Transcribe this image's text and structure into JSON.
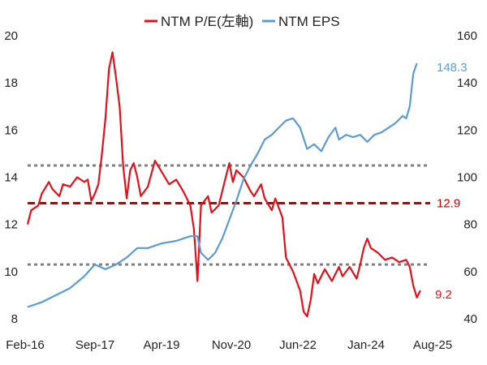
{
  "chart_data": {
    "type": "line",
    "title": "",
    "legend": {
      "placement": "top",
      "entries": [
        "NTM P/E(左軸)",
        "NTM EPS"
      ]
    },
    "colors": {
      "pe": "#e0111b",
      "eps": "#5b9bd5",
      "gray_dash": "#808080",
      "red_dash": "#c00000"
    },
    "x_axis": {
      "tick_labels": [
        "Feb-16",
        "Sep-17",
        "Apr-19",
        "Nov-20",
        "Jun-22",
        "Jan-24",
        "Aug-25"
      ],
      "range": [
        "2016-02",
        "2025-08"
      ]
    },
    "y_left": {
      "range": [
        8,
        20
      ],
      "ticks": [
        8,
        10,
        12,
        14,
        16,
        18,
        20
      ]
    },
    "y_right": {
      "range": [
        40,
        160
      ],
      "ticks": [
        40,
        60,
        80,
        100,
        120,
        140,
        160
      ]
    },
    "grid": false,
    "reference_lines": {
      "pe_mean": 12.9,
      "pe_plus_1sd": 14.5,
      "pe_minus_1sd": 10.3
    },
    "annotations": {
      "pe_mean_label": "12.9",
      "pe_last_label": "9.2",
      "eps_last_label": "148.3"
    },
    "series": [
      {
        "name": "NTM P/E(左軸)",
        "axis": "left",
        "points": [
          [
            "2016-02",
            12.0
          ],
          [
            "2016-03",
            12.6
          ],
          [
            "2016-05",
            12.8
          ],
          [
            "2016-06",
            13.3
          ],
          [
            "2016-08",
            13.8
          ],
          [
            "2016-09",
            13.5
          ],
          [
            "2016-11",
            13.2
          ],
          [
            "2016-12",
            13.7
          ],
          [
            "2017-02",
            13.6
          ],
          [
            "2017-04",
            14.0
          ],
          [
            "2017-06",
            13.8
          ],
          [
            "2017-07",
            13.9
          ],
          [
            "2017-08",
            13.0
          ],
          [
            "2017-09",
            13.3
          ],
          [
            "2017-10",
            13.7
          ],
          [
            "2017-11",
            15.0
          ],
          [
            "2017-12",
            16.5
          ],
          [
            "2018-01",
            18.6
          ],
          [
            "2018-02",
            19.3
          ],
          [
            "2018-03",
            18.2
          ],
          [
            "2018-04",
            17.0
          ],
          [
            "2018-05",
            14.5
          ],
          [
            "2018-06",
            13.1
          ],
          [
            "2018-07",
            14.3
          ],
          [
            "2018-08",
            14.6
          ],
          [
            "2018-09",
            14.0
          ],
          [
            "2018-10",
            13.2
          ],
          [
            "2018-12",
            13.6
          ],
          [
            "2019-02",
            14.7
          ],
          [
            "2019-04",
            14.2
          ],
          [
            "2019-06",
            13.7
          ],
          [
            "2019-08",
            13.9
          ],
          [
            "2019-10",
            13.4
          ],
          [
            "2019-12",
            12.8
          ],
          [
            "2020-01",
            11.8
          ],
          [
            "2020-02",
            9.6
          ],
          [
            "2020-03",
            12.8
          ],
          [
            "2020-05",
            13.2
          ],
          [
            "2020-06",
            12.5
          ],
          [
            "2020-08",
            12.8
          ],
          [
            "2020-09",
            13.4
          ],
          [
            "2020-10",
            14.0
          ],
          [
            "2020-11",
            14.6
          ],
          [
            "2020-12",
            13.8
          ],
          [
            "2021-01",
            14.3
          ],
          [
            "2021-03",
            14.0
          ],
          [
            "2021-05",
            13.4
          ],
          [
            "2021-06",
            13.2
          ],
          [
            "2021-08",
            13.7
          ],
          [
            "2021-09",
            13.1
          ],
          [
            "2021-11",
            12.6
          ],
          [
            "2021-12",
            13.1
          ],
          [
            "2022-02",
            12.3
          ],
          [
            "2022-03",
            10.6
          ],
          [
            "2022-04",
            10.3
          ],
          [
            "2022-05",
            10.0
          ],
          [
            "2022-07",
            9.2
          ],
          [
            "2022-08",
            8.3
          ],
          [
            "2022-09",
            8.1
          ],
          [
            "2022-10",
            8.8
          ],
          [
            "2022-11",
            9.9
          ],
          [
            "2022-12",
            9.5
          ],
          [
            "2023-02",
            10.1
          ],
          [
            "2023-04",
            9.6
          ],
          [
            "2023-06",
            10.2
          ],
          [
            "2023-07",
            9.8
          ],
          [
            "2023-09",
            10.2
          ],
          [
            "2023-11",
            9.7
          ],
          [
            "2023-12",
            10.3
          ],
          [
            "2024-01",
            11.0
          ],
          [
            "2024-02",
            11.4
          ],
          [
            "2024-03",
            11.0
          ],
          [
            "2024-05",
            10.8
          ],
          [
            "2024-07",
            10.5
          ],
          [
            "2024-09",
            10.6
          ],
          [
            "2024-11",
            10.4
          ],
          [
            "2025-01",
            10.5
          ],
          [
            "2025-02",
            10.2
          ],
          [
            "2025-03",
            9.4
          ],
          [
            "2025-04",
            8.9
          ],
          [
            "2025-05",
            9.2
          ]
        ]
      },
      {
        "name": "NTM EPS",
        "axis": "right",
        "points": [
          [
            "2016-02",
            45
          ],
          [
            "2016-06",
            47
          ],
          [
            "2016-10",
            50
          ],
          [
            "2017-02",
            53
          ],
          [
            "2017-06",
            58
          ],
          [
            "2017-09",
            63
          ],
          [
            "2017-12",
            61
          ],
          [
            "2018-03",
            63
          ],
          [
            "2018-06",
            66
          ],
          [
            "2018-09",
            70
          ],
          [
            "2018-12",
            70
          ],
          [
            "2019-04",
            72
          ],
          [
            "2019-08",
            73
          ],
          [
            "2019-12",
            75
          ],
          [
            "2020-02",
            75
          ],
          [
            "2020-03",
            68
          ],
          [
            "2020-05",
            65
          ],
          [
            "2020-07",
            68
          ],
          [
            "2020-09",
            74
          ],
          [
            "2020-11",
            82
          ],
          [
            "2021-01",
            90
          ],
          [
            "2021-03",
            99
          ],
          [
            "2021-05",
            105
          ],
          [
            "2021-07",
            110
          ],
          [
            "2021-09",
            116
          ],
          [
            "2021-11",
            118
          ],
          [
            "2022-01",
            121
          ],
          [
            "2022-03",
            124
          ],
          [
            "2022-05",
            125
          ],
          [
            "2022-07",
            121
          ],
          [
            "2022-09",
            112
          ],
          [
            "2022-11",
            114
          ],
          [
            "2023-01",
            111
          ],
          [
            "2023-03",
            117
          ],
          [
            "2023-05",
            121
          ],
          [
            "2023-06",
            116
          ],
          [
            "2023-08",
            118
          ],
          [
            "2023-10",
            117
          ],
          [
            "2023-12",
            118
          ],
          [
            "2024-02",
            115
          ],
          [
            "2024-04",
            118
          ],
          [
            "2024-06",
            119
          ],
          [
            "2024-08",
            121
          ],
          [
            "2024-10",
            123
          ],
          [
            "2024-12",
            126
          ],
          [
            "2025-01",
            125
          ],
          [
            "2025-02",
            130
          ],
          [
            "2025-03",
            144
          ],
          [
            "2025-04",
            148.3
          ]
        ]
      }
    ]
  }
}
